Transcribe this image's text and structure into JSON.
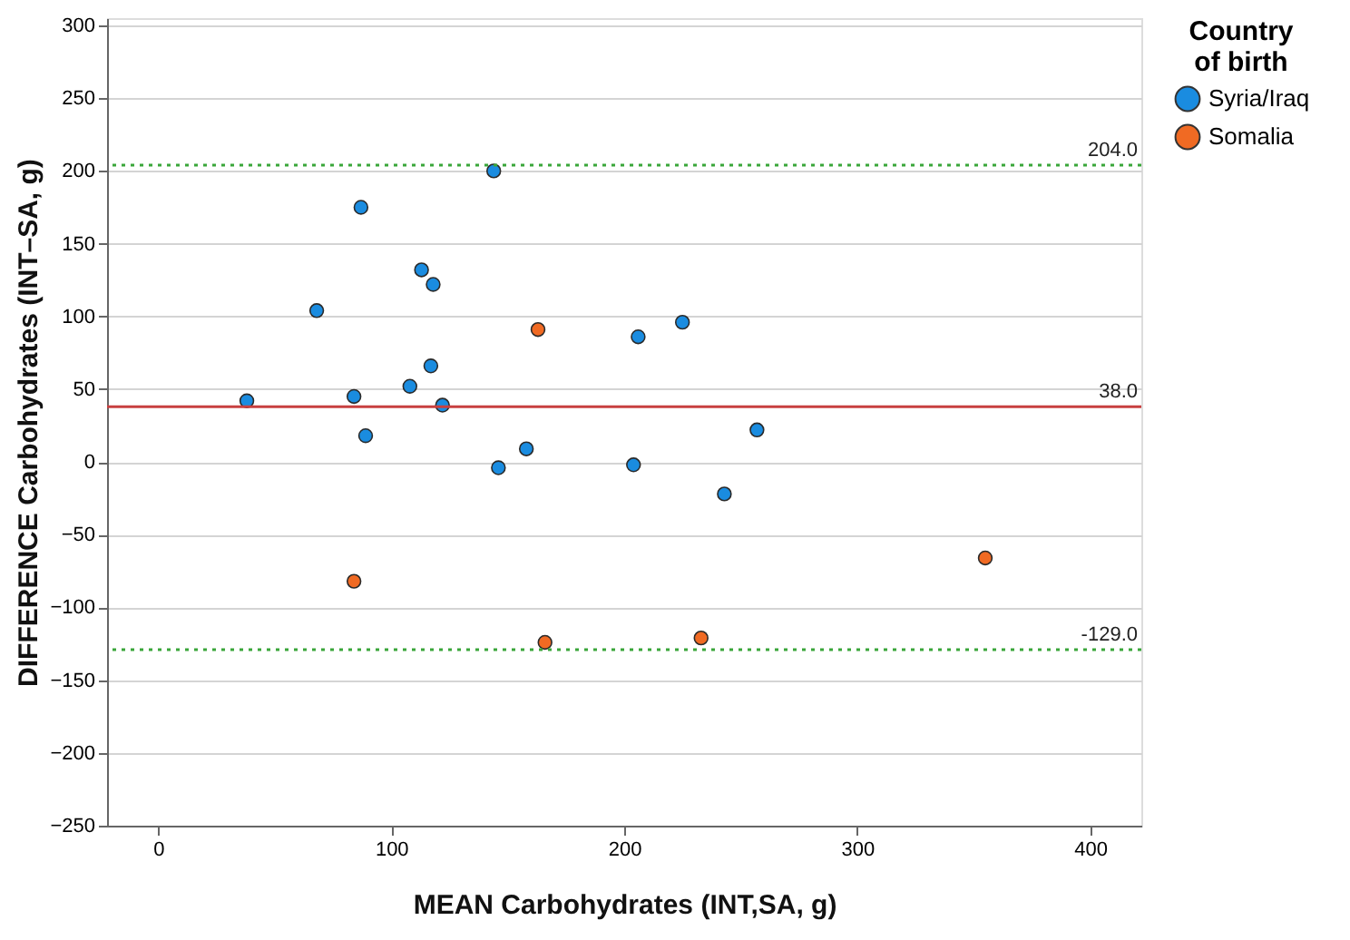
{
  "chart_data": {
    "type": "scatter",
    "xlabel": "MEAN Carbohydrates (INT,SA, g)",
    "ylabel": "DIFFERENCE Carbohydrates (INT–SA, g)",
    "legend_title": "Country of birth",
    "series": [
      {
        "name": "Syria/Iraq",
        "color": "#1a8ce0",
        "x": [
          38,
          68,
          84,
          87,
          89,
          108,
          113,
          117,
          118,
          122,
          144,
          146,
          158,
          204,
          206,
          225,
          243,
          257
        ],
        "values": [
          42,
          104,
          45,
          175,
          18,
          52,
          132,
          66,
          122,
          39,
          200,
          -4,
          9,
          -2,
          86,
          96,
          -22,
          22
        ]
      },
      {
        "name": "Somalia",
        "color": "#f06a23",
        "x": [
          84,
          163,
          166,
          233,
          355
        ],
        "values": [
          -82,
          91,
          -124,
          -121,
          -66
        ]
      }
    ],
    "xlim": [
      -22,
      422
    ],
    "xticks": [
      0,
      100,
      200,
      300,
      400
    ],
    "ylim": [
      -250,
      305
    ],
    "yticks": [
      -250,
      -200,
      -150,
      -100,
      -50,
      0,
      50,
      100,
      150,
      200,
      250,
      300
    ],
    "ref_lines": [
      {
        "axis": "y",
        "value": 204,
        "label": "204.0",
        "color": "#3aa63a",
        "line_style": "dotted"
      },
      {
        "axis": "y",
        "value": 38,
        "label": "38.0",
        "color": "#c84040",
        "line_style": "solid"
      },
      {
        "axis": "y",
        "value": -129,
        "label": "-129.0",
        "color": "#3aa63a",
        "line_style": "dotted"
      }
    ],
    "grid": "y",
    "legend": "top right",
    "marker": "circle"
  }
}
